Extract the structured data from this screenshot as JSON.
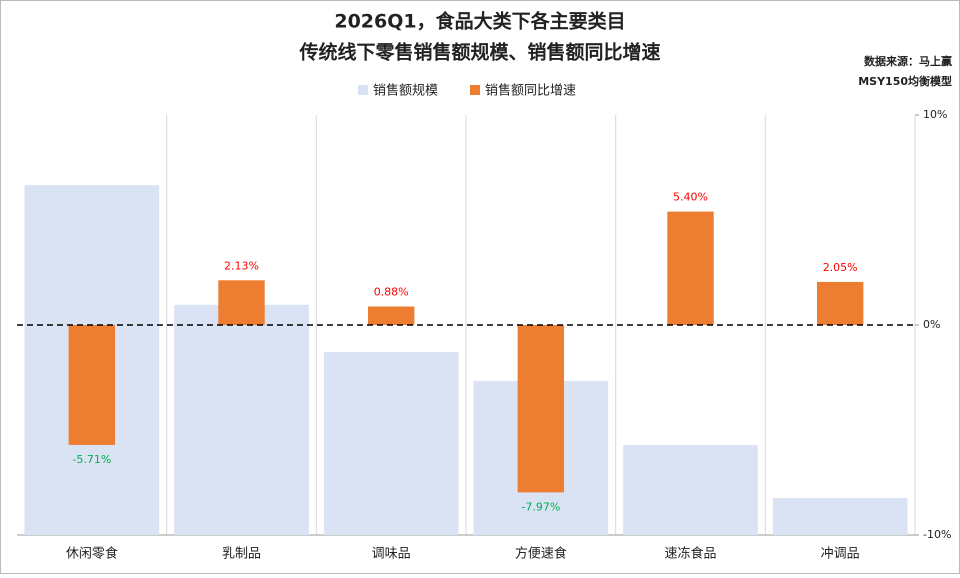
{
  "chart_data": {
    "type": "bar",
    "title": [
      "2026Q1，食品大类下各主要类目",
      "传统线下零售销售额规模、销售额同比增速"
    ],
    "source": [
      "数据来源：马上赢",
      "MSY150均衡模型"
    ],
    "categories": [
      "休闲零食",
      "乳制品",
      "调味品",
      "方便速食",
      "速冻食品",
      "冲调品"
    ],
    "ylim": [
      0,
      100
    ],
    "y2lim": [
      -10,
      10
    ],
    "y2ticks": [
      {
        "value": 10,
        "label": "10%"
      },
      {
        "value": 0,
        "label": "0%"
      },
      {
        "value": -10,
        "label": "-10%"
      }
    ],
    "series": [
      {
        "name": "销售额规模",
        "color": "#dae3f3",
        "values": [
          83.3,
          54.8,
          43.6,
          36.7,
          21.4,
          8.8
        ]
      },
      {
        "name": "销售额同比增速",
        "color": "#ed7d31",
        "axis": "y2",
        "values": [
          -5.71,
          2.13,
          0.88,
          -7.97,
          5.4,
          2.05
        ],
        "value_labels": [
          "-5.71%",
          "2.13%",
          "0.88%",
          "-7.97%",
          "5.40%",
          "2.05%"
        ]
      }
    ],
    "positive_label_color": "#ff0000",
    "negative_label_color": "#00b050",
    "zero_line": true
  }
}
